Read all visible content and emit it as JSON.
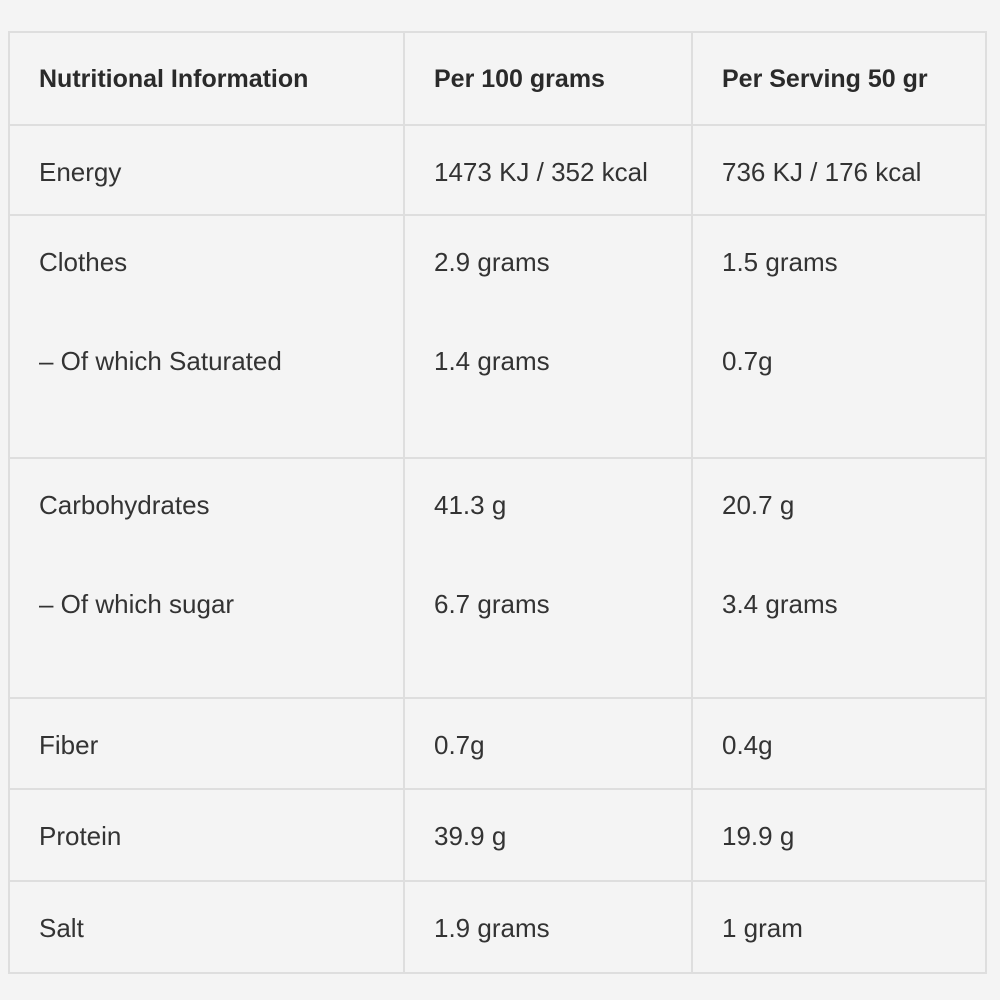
{
  "table": {
    "headers": [
      "Nutritional Information",
      "Per 100 grams",
      "Per Serving 50 gr"
    ],
    "rows": [
      {
        "label": "Energy",
        "per100": "1473 KJ / 352 kcal",
        "serving": "736 KJ / 176 kcal"
      },
      {
        "label": "Clothes",
        "per100": "2.9 grams",
        "serving": "1.5 grams",
        "sub_label": "– Of which Saturated",
        "sub_per100": "1.4 grams",
        "sub_serving": "0.7g"
      },
      {
        "label": "Carbohydrates",
        "per100": "41.3 g",
        "serving": "20.7 g",
        "sub_label": "– Of which sugar",
        "sub_per100": "6.7 grams",
        "sub_serving": "3.4 grams"
      },
      {
        "label": "Fiber",
        "per100": "0.7g",
        "serving": "0.4g"
      },
      {
        "label": "Protein",
        "per100": "39.9 g",
        "serving": "19.9 g"
      },
      {
        "label": "Salt",
        "per100": "1.9 grams",
        "serving": "1 gram"
      }
    ]
  }
}
